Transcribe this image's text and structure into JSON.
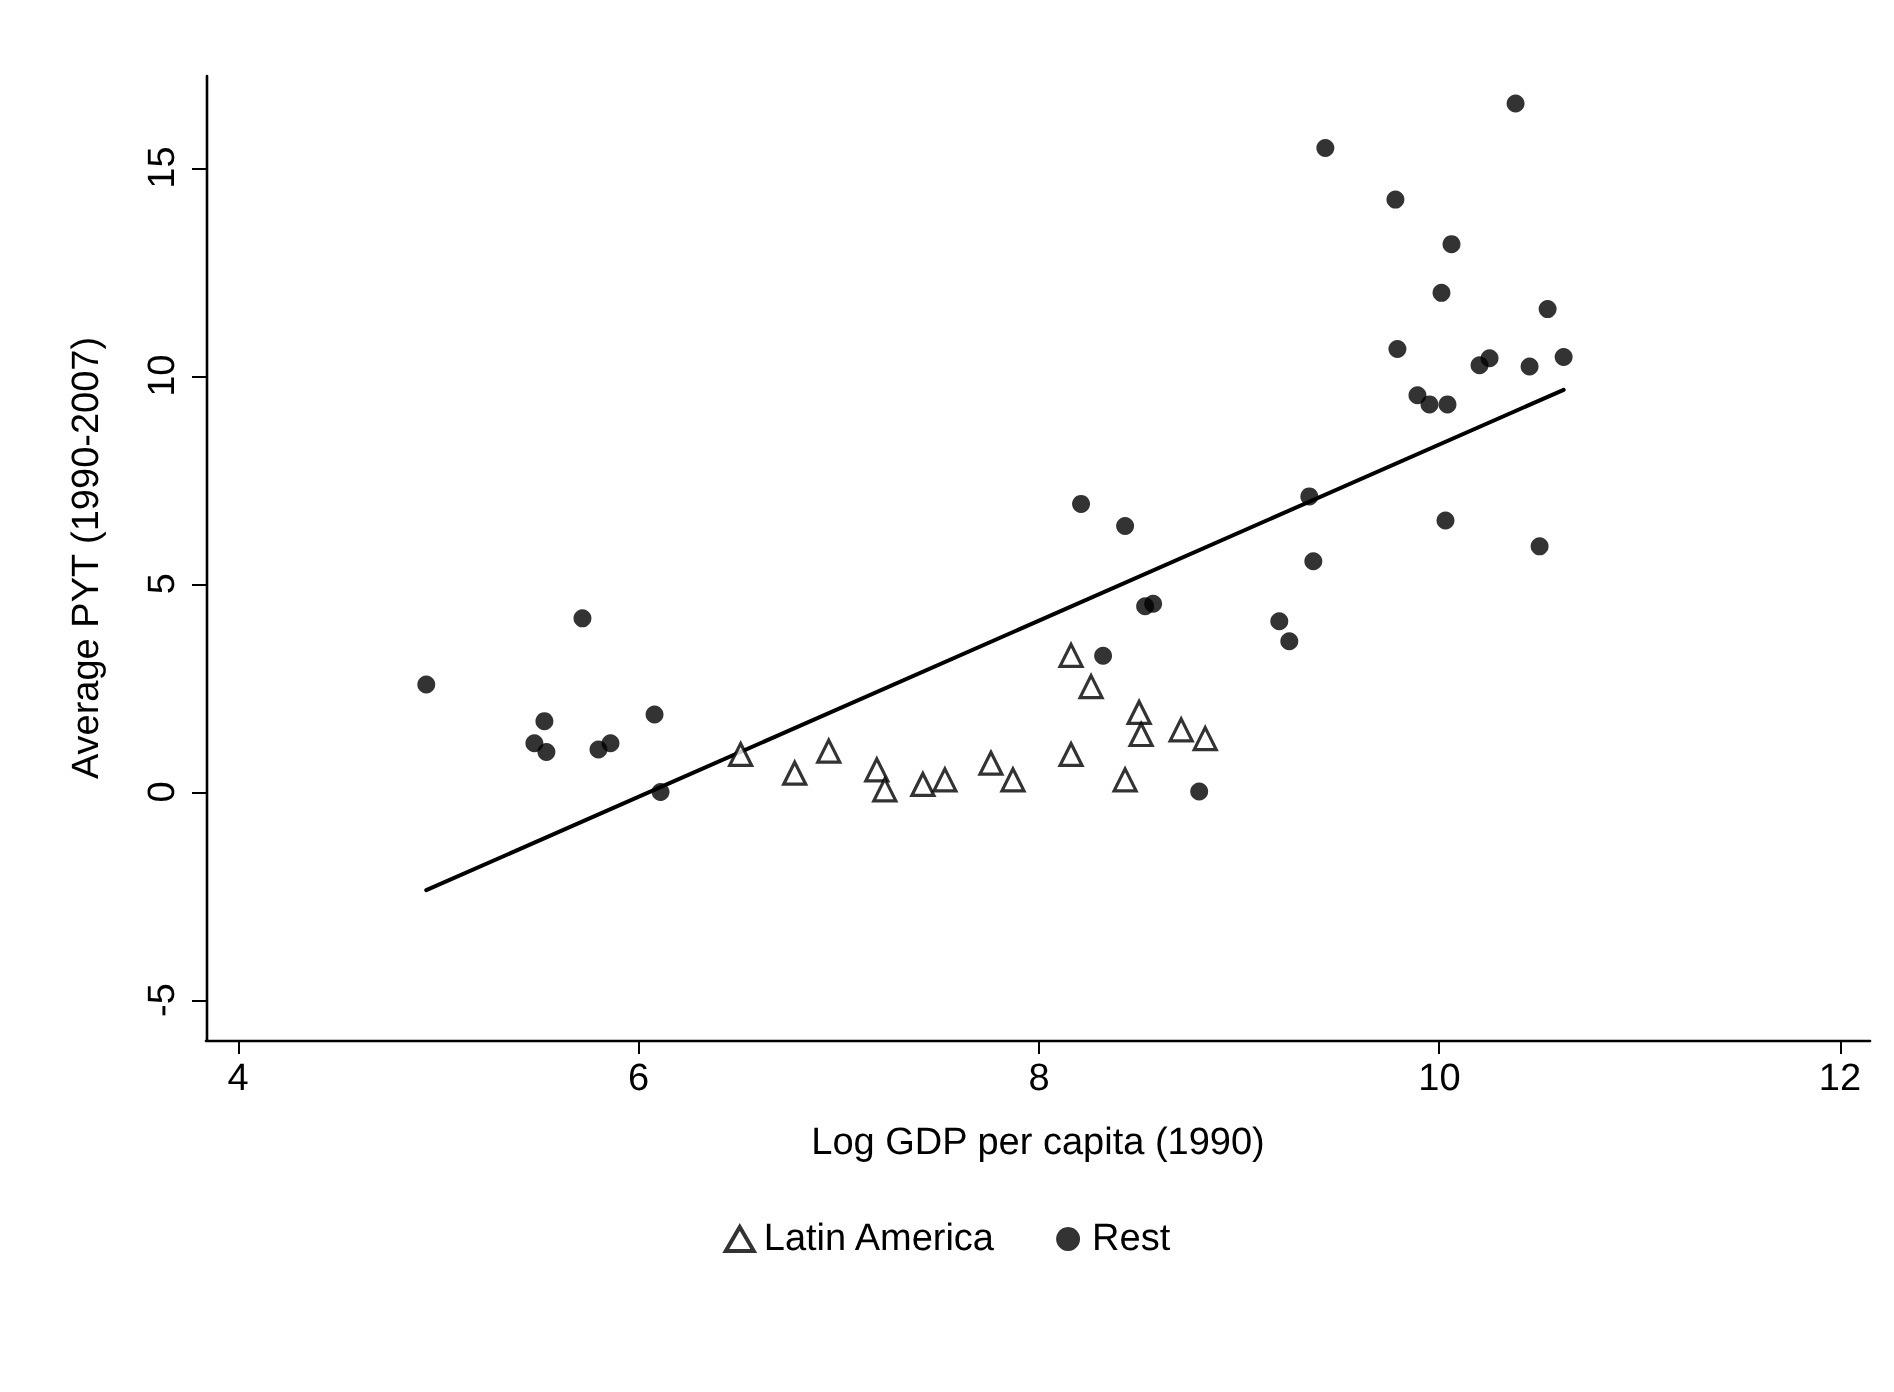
{
  "chart_data": {
    "type": "scatter",
    "xlabel": "Log GDP per capita (1990)",
    "ylabel": "Average PYT (1990-2007)",
    "xlim": [
      3.84,
      12.15
    ],
    "xticks": [
      4,
      6,
      8,
      10,
      12
    ],
    "ylim": [
      -5.96,
      17.2
    ],
    "yticks": [
      -5,
      0,
      5,
      10,
      15
    ],
    "grid": false,
    "legend": "bottom",
    "series": [
      {
        "name": "Latin America",
        "color": "#000000",
        "marker": "triangle",
        "x": [
          6.51,
          6.78,
          6.95,
          7.19,
          7.23,
          7.42,
          7.53,
          7.76,
          7.87,
          8.16,
          8.16,
          8.26,
          8.43,
          8.5,
          8.51,
          8.71,
          8.83
        ],
        "values": [
          0.9,
          0.45,
          0.98,
          0.53,
          0.05,
          0.18,
          0.29,
          0.69,
          0.29,
          3.28,
          0.9,
          2.53,
          0.29,
          1.91,
          1.38,
          1.49,
          1.28
        ]
      },
      {
        "name": "Rest",
        "color": "#000000",
        "marker": "circle",
        "x": [
          4.94,
          5.48,
          5.53,
          5.54,
          5.72,
          5.8,
          5.86,
          6.08,
          6.11,
          8.21,
          8.32,
          8.43,
          8.53,
          8.57,
          8.8,
          9.2,
          9.25,
          9.35,
          9.37,
          9.43,
          9.78,
          9.79,
          9.89,
          9.95,
          10.01,
          10.03,
          10.04,
          10.06,
          10.2,
          10.25,
          10.38,
          10.45,
          10.5,
          10.54,
          10.62
        ],
        "values": [
          2.58,
          1.17,
          1.7,
          0.96,
          4.17,
          1.02,
          1.17,
          1.86,
          0.0,
          6.92,
          3.27,
          6.39,
          4.46,
          4.52,
          0.01,
          4.1,
          3.62,
          7.1,
          5.54,
          15.47,
          14.23,
          10.64,
          9.53,
          9.31,
          11.99,
          6.52,
          9.31,
          13.16,
          10.25,
          10.42,
          16.54,
          10.22,
          5.9,
          11.6,
          10.45
        ]
      },
      {
        "type": "line",
        "color": "#000000",
        "marker": "none",
        "line_style": "solid",
        "x": [
          4.94,
          10.62
        ],
        "values": [
          -2.36,
          9.66
        ]
      }
    ]
  }
}
